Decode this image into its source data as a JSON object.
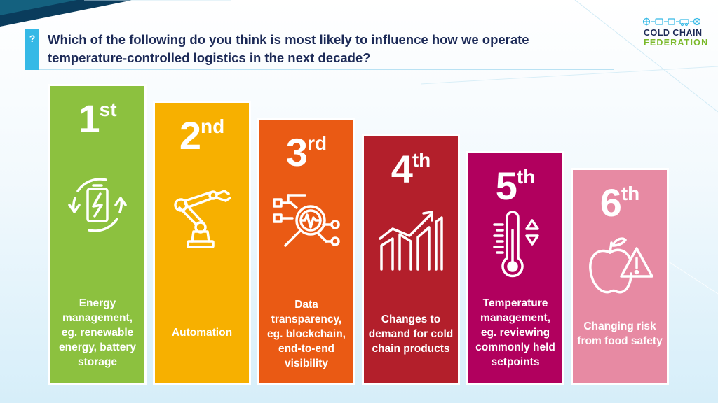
{
  "question": {
    "badge": "?",
    "text": "Which of the following do you think is most likely to influence how we operate temperature-controlled logistics in the next decade?"
  },
  "logo": {
    "line1": "COLD CHAIN",
    "line2": "FEDERATION"
  },
  "colors": {
    "navy": "#1c2a57",
    "accent_blue": "#35b9e6",
    "logo_green": "#7ab929"
  },
  "rankings": [
    {
      "number": "1",
      "suffix": "st",
      "label": "Energy management, eg. renewable energy, battery storage",
      "color": "#8cc13f",
      "icon": "battery-cycle-icon"
    },
    {
      "number": "2",
      "suffix": "nd",
      "label": "Automation",
      "color": "#f7b000",
      "icon": "robotic-arm-icon"
    },
    {
      "number": "3",
      "suffix": "rd",
      "label": "Data transparency, eg. blockchain, end-to-end visibility",
      "color": "#ea5a14",
      "icon": "data-magnifier-icon"
    },
    {
      "number": "4",
      "suffix": "th",
      "label": "Changes to demand for cold chain products",
      "color": "#b31f2b",
      "icon": "growth-chart-icon"
    },
    {
      "number": "5",
      "suffix": "th",
      "label": "Temperature management, eg. reviewing commonly held setpoints",
      "color": "#b1005e",
      "icon": "thermometer-icon"
    },
    {
      "number": "6",
      "suffix": "th",
      "label": "Changing risk from food safety",
      "color": "#e78aa3",
      "icon": "apple-warning-icon"
    }
  ]
}
